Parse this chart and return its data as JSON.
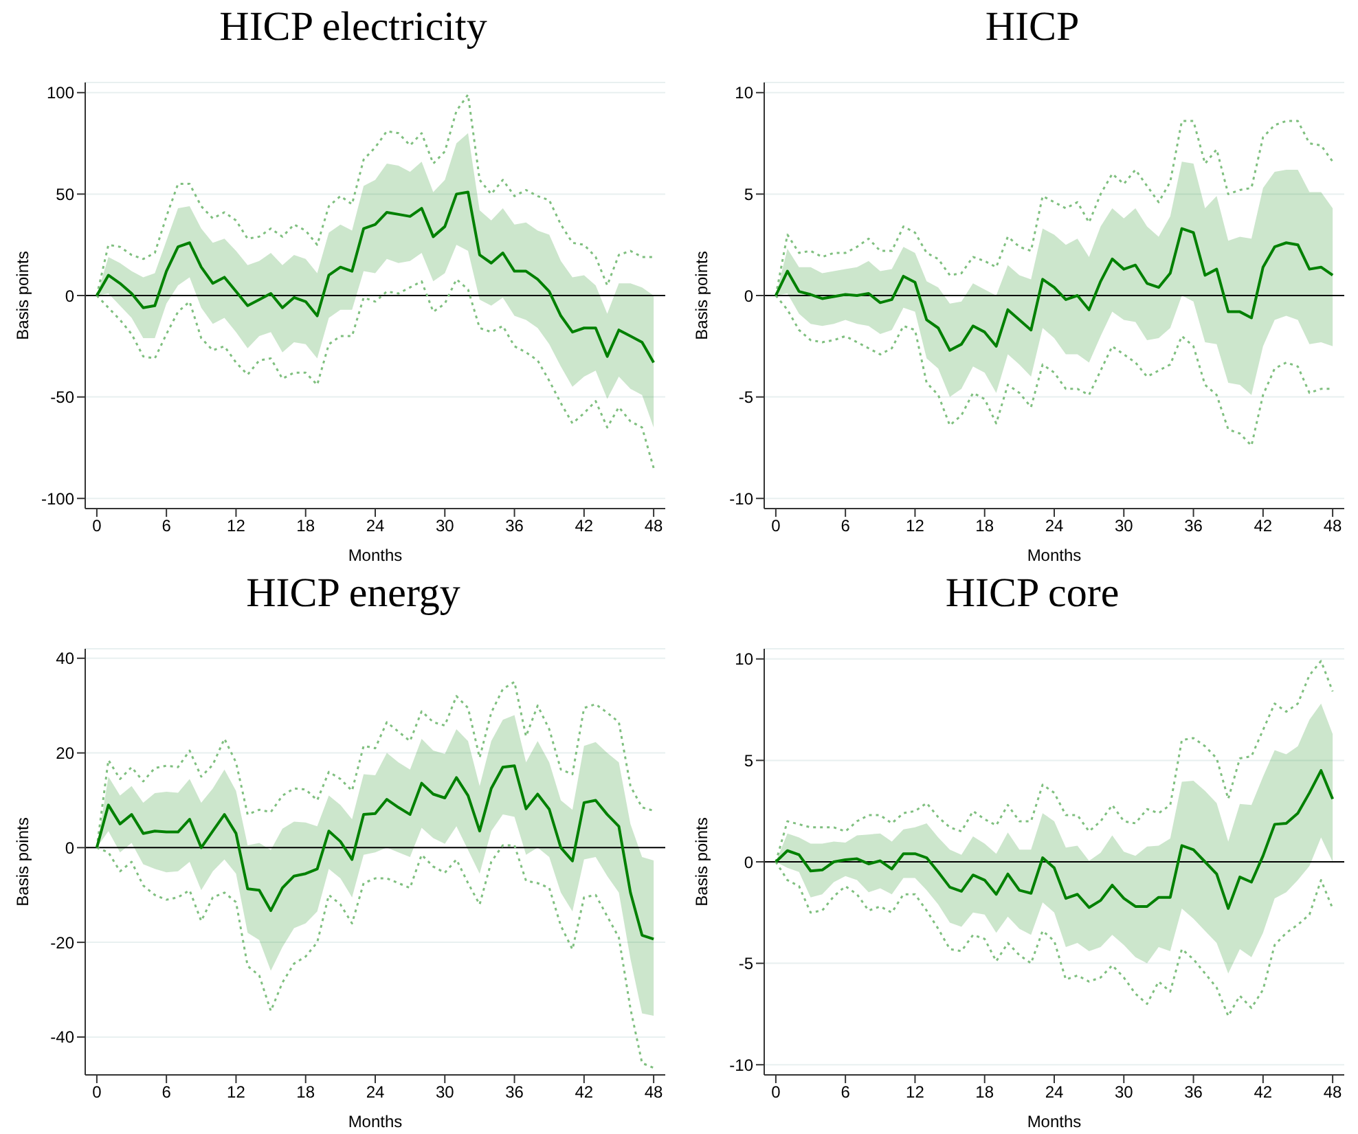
{
  "chart_data": [
    {
      "type": "line",
      "title": "HICP electricity",
      "xlabel": "Months",
      "ylabel": "Basis points",
      "x": [
        0,
        1,
        2,
        3,
        4,
        5,
        6,
        7,
        8,
        9,
        10,
        11,
        12,
        13,
        14,
        15,
        16,
        17,
        18,
        19,
        20,
        21,
        22,
        23,
        24,
        25,
        26,
        27,
        28,
        29,
        30,
        31,
        32,
        33,
        34,
        35,
        36,
        37,
        38,
        39,
        40,
        41,
        42,
        43,
        44,
        45,
        46,
        47,
        48
      ],
      "xlim": [
        -1,
        49
      ],
      "xticks": [
        0,
        6,
        12,
        18,
        24,
        30,
        36,
        42,
        48
      ],
      "ylim": [
        -105,
        105
      ],
      "yticks": [
        -100,
        -50,
        0,
        50,
        100
      ],
      "grid": "y",
      "ref_lines": [
        {
          "axis": "y",
          "value": 0,
          "color": "#000000"
        }
      ],
      "series": [
        {
          "color": "#7fbf7f",
          "line_style": "dotted",
          "values": [
            0,
            25,
            24,
            20,
            18,
            21,
            39,
            55,
            55,
            44,
            38,
            41,
            37,
            28,
            29,
            33,
            29,
            35,
            32,
            25,
            44,
            49,
            45,
            67,
            73,
            81,
            80,
            74,
            80,
            65,
            71,
            91,
            99,
            57,
            50,
            57,
            49,
            52,
            49,
            47,
            35,
            26,
            25,
            19,
            5,
            20,
            22,
            19,
            19
          ]
        },
        {
          "color": "#7fbf7f",
          "line_style": "dotted",
          "values": [
            0,
            -6,
            -12,
            -19,
            -30,
            -31,
            -19,
            -8,
            -3,
            -21,
            -27,
            -25,
            -33,
            -39,
            -32,
            -31,
            -41,
            -38,
            -38,
            -44,
            -24,
            -20,
            -20,
            -1,
            -3,
            2,
            1,
            4,
            7,
            -8,
            -4,
            8,
            3,
            -16,
            -18,
            -15,
            -25,
            -28,
            -32,
            -42,
            -53,
            -63,
            -58,
            -52,
            -65,
            -55,
            -62,
            -65,
            -85
          ]
        },
        {
          "color": "#008000",
          "line_style": "solid",
          "values": [
            0,
            10,
            6,
            1,
            -6,
            -5,
            12,
            24,
            26,
            14,
            6,
            9,
            2,
            -5,
            -2,
            1,
            -6,
            -1,
            -3,
            -10,
            10,
            14,
            12,
            33,
            35,
            41,
            40,
            39,
            43,
            29,
            34,
            50,
            51,
            20,
            16,
            21,
            12,
            12,
            8,
            2,
            -10,
            -18,
            -16,
            -16,
            -30,
            -17,
            -20,
            -23,
            -33
          ],
          "lower": [
            0,
            1,
            -5,
            -11,
            -21,
            -21,
            -4,
            5,
            9,
            -6,
            -14,
            -11,
            -18,
            -26,
            -20,
            -18,
            -28,
            -23,
            -24,
            -31,
            -11,
            -7,
            -7,
            12,
            11,
            18,
            16,
            17,
            21,
            7,
            11,
            25,
            22,
            -2,
            -5,
            -1,
            -10,
            -12,
            -16,
            -24,
            -35,
            -45,
            -40,
            -37,
            -51,
            -40,
            -46,
            -49,
            -65
          ],
          "upper": [
            0,
            19,
            16,
            12,
            9,
            11,
            27,
            43,
            44,
            33,
            26,
            28,
            22,
            15,
            17,
            21,
            15,
            20,
            18,
            11,
            31,
            35,
            32,
            54,
            57,
            65,
            64,
            61,
            66,
            51,
            57,
            75,
            80,
            42,
            37,
            43,
            35,
            36,
            32,
            30,
            17,
            9,
            10,
            5,
            -9,
            6,
            6,
            4,
            0
          ]
        }
      ]
    },
    {
      "type": "line",
      "title": "HICP",
      "xlabel": "Months",
      "ylabel": "Basis points",
      "x": [
        0,
        1,
        2,
        3,
        4,
        5,
        6,
        7,
        8,
        9,
        10,
        11,
        12,
        13,
        14,
        15,
        16,
        17,
        18,
        19,
        20,
        21,
        22,
        23,
        24,
        25,
        26,
        27,
        28,
        29,
        30,
        31,
        32,
        33,
        34,
        35,
        36,
        37,
        38,
        39,
        40,
        41,
        42,
        43,
        44,
        45,
        46,
        47,
        48
      ],
      "xlim": [
        -1,
        49
      ],
      "xticks": [
        0,
        6,
        12,
        18,
        24,
        30,
        36,
        42,
        48
      ],
      "ylim": [
        -10.5,
        10.5
      ],
      "yticks": [
        -10,
        -5,
        0,
        5,
        10
      ],
      "grid": "y",
      "ref_lines": [
        {
          "axis": "y",
          "value": 0,
          "color": "#000000"
        }
      ],
      "series": [
        {
          "color": "#7fbf7f",
          "line_style": "dotted",
          "values": [
            0,
            3.0,
            2.1,
            2.2,
            1.9,
            2.1,
            2.1,
            2.4,
            2.8,
            2.2,
            2.2,
            3.4,
            3.1,
            2.1,
            1.8,
            1.0,
            1.1,
            1.9,
            1.7,
            1.4,
            2.9,
            2.4,
            2.2,
            4.9,
            4.6,
            4.3,
            4.6,
            3.6,
            5.0,
            6.0,
            5.5,
            6.2,
            5.4,
            4.6,
            5.6,
            8.6,
            8.6,
            6.5,
            7.2,
            5.0,
            5.2,
            5.3,
            7.8,
            8.4,
            8.6,
            8.6,
            7.5,
            7.4,
            6.6
          ]
        },
        {
          "color": "#7fbf7f",
          "line_style": "dotted",
          "values": [
            0,
            -0.7,
            -1.7,
            -2.2,
            -2.3,
            -2.2,
            -2.0,
            -2.3,
            -2.6,
            -2.9,
            -2.6,
            -1.5,
            -1.7,
            -4.3,
            -4.9,
            -6.4,
            -5.9,
            -4.8,
            -5.1,
            -6.3,
            -4.4,
            -4.8,
            -5.5,
            -3.4,
            -3.8,
            -4.6,
            -4.6,
            -4.9,
            -3.7,
            -2.5,
            -2.9,
            -3.3,
            -4.0,
            -3.7,
            -3.4,
            -2.0,
            -2.5,
            -4.4,
            -4.9,
            -6.6,
            -6.8,
            -7.4,
            -4.9,
            -3.6,
            -3.3,
            -3.5,
            -4.8,
            -4.6,
            -4.6
          ]
        },
        {
          "color": "#008000",
          "line_style": "solid",
          "values": [
            0,
            1.2,
            0.2,
            0.05,
            -0.15,
            -0.05,
            0.05,
            0,
            0.1,
            -0.35,
            -0.2,
            0.95,
            0.65,
            -1.2,
            -1.6,
            -2.7,
            -2.4,
            -1.5,
            -1.8,
            -2.5,
            -0.7,
            -1.2,
            -1.7,
            0.8,
            0.4,
            -0.2,
            0,
            -0.7,
            0.7,
            1.8,
            1.3,
            1.5,
            0.6,
            0.4,
            1.1,
            3.3,
            3.1,
            1.0,
            1.3,
            -0.8,
            -0.8,
            -1.1,
            1.4,
            2.4,
            2.6,
            2.5,
            1.3,
            1.4,
            1.0
          ],
          "lower": [
            0,
            0.1,
            -0.9,
            -1.4,
            -1.5,
            -1.4,
            -1.2,
            -1.4,
            -1.5,
            -1.9,
            -1.7,
            -0.6,
            -0.8,
            -3.1,
            -3.6,
            -5.0,
            -4.6,
            -3.5,
            -3.8,
            -4.8,
            -2.9,
            -3.4,
            -4.0,
            -1.6,
            -2.1,
            -2.9,
            -2.9,
            -3.3,
            -2.0,
            -0.8,
            -1.2,
            -1.3,
            -2.2,
            -2.1,
            -1.6,
            0.0,
            -0.3,
            -2.3,
            -2.4,
            -4.3,
            -4.4,
            -4.9,
            -2.5,
            -1.2,
            -1.0,
            -1.2,
            -2.4,
            -2.3,
            -2.5
          ],
          "upper": [
            0,
            2.3,
            1.4,
            1.4,
            1.1,
            1.2,
            1.3,
            1.4,
            1.7,
            1.2,
            1.3,
            2.4,
            2.1,
            0.7,
            0.4,
            -0.4,
            -0.3,
            0.6,
            0.3,
            0,
            1.5,
            1.0,
            0.8,
            3.3,
            3.0,
            2.5,
            2.8,
            1.9,
            3.4,
            4.3,
            3.8,
            4.3,
            3.4,
            2.9,
            3.9,
            6.6,
            6.5,
            4.3,
            4.9,
            2.7,
            2.9,
            2.8,
            5.3,
            6.1,
            6.2,
            6.2,
            5.1,
            5.1,
            4.3
          ]
        }
      ]
    },
    {
      "type": "line",
      "title": "HICP energy",
      "xlabel": "Months",
      "ylabel": "Basis points",
      "x": [
        0,
        1,
        2,
        3,
        4,
        5,
        6,
        7,
        8,
        9,
        10,
        11,
        12,
        13,
        14,
        15,
        16,
        17,
        18,
        19,
        20,
        21,
        22,
        23,
        24,
        25,
        26,
        27,
        28,
        29,
        30,
        31,
        32,
        33,
        34,
        35,
        36,
        37,
        38,
        39,
        40,
        41,
        42,
        43,
        44,
        45,
        46,
        47,
        48
      ],
      "xlim": [
        -1,
        49
      ],
      "xticks": [
        0,
        6,
        12,
        18,
        24,
        30,
        36,
        42,
        48
      ],
      "ylim": [
        -48,
        42
      ],
      "yticks": [
        -40,
        -20,
        0,
        20,
        40
      ],
      "grid": "y",
      "ref_lines": [
        {
          "axis": "y",
          "value": 0,
          "color": "#000000"
        }
      ],
      "series": [
        {
          "color": "#7fbf7f",
          "line_style": "dotted",
          "values": [
            0,
            18.5,
            14.5,
            17,
            14,
            16.8,
            17.3,
            17,
            20.5,
            15,
            17.5,
            23,
            18,
            7,
            8,
            7.5,
            11,
            12.5,
            12.3,
            10,
            16,
            14.5,
            12,
            21.5,
            21,
            26.5,
            24.5,
            22.5,
            28.8,
            26.5,
            25.8,
            32,
            29.5,
            19,
            28.5,
            33.5,
            35,
            23.5,
            30,
            25,
            16.5,
            15.5,
            29.5,
            30.3,
            28.5,
            26.5,
            13,
            8.5,
            7.8
          ]
        },
        {
          "color": "#7fbf7f",
          "line_style": "dotted",
          "values": [
            0,
            -1,
            -5,
            -3,
            -8,
            -10,
            -11,
            -10.5,
            -9,
            -15.5,
            -10.5,
            -9.5,
            -11.5,
            -25,
            -27,
            -34.5,
            -28.5,
            -24.5,
            -23,
            -20,
            -10,
            -12,
            -16,
            -7.5,
            -6.5,
            -6.5,
            -7.5,
            -8.5,
            -1.5,
            -4,
            -5.3,
            -2.5,
            -7.5,
            -12,
            -3,
            0.5,
            0.5,
            -7,
            -7.5,
            -8.5,
            -16.5,
            -21.5,
            -10.5,
            -10,
            -14.5,
            -19,
            -34,
            -45.5,
            -46.5
          ]
        },
        {
          "color": "#008000",
          "line_style": "solid",
          "values": [
            0,
            9,
            5,
            7,
            3,
            3.5,
            3.3,
            3.3,
            6,
            0,
            3.5,
            7,
            3,
            -8.7,
            -9,
            -13.3,
            -8.5,
            -6,
            -5.5,
            -4.5,
            3.5,
            1.3,
            -2.5,
            7,
            7.2,
            10.2,
            8.5,
            7,
            13.6,
            11.3,
            10.5,
            14.8,
            11,
            3.5,
            12.5,
            17,
            17.3,
            8.2,
            11.3,
            8.1,
            0,
            -2.8,
            9.5,
            10,
            7,
            4.5,
            -9.5,
            -18.5,
            -19.3
          ],
          "lower": [
            0,
            3.5,
            -1,
            1,
            -3.5,
            -4.5,
            -5.2,
            -5,
            -3,
            -9,
            -5,
            -2.5,
            -5.5,
            -18,
            -19.5,
            -26,
            -21,
            -17,
            -16,
            -13.5,
            -4.5,
            -6.5,
            -10.5,
            -1.5,
            -1,
            0,
            -1,
            -2,
            4.2,
            2,
            0.8,
            4.5,
            -0.5,
            -5.5,
            3.5,
            7,
            6.5,
            -1.5,
            0,
            -2,
            -9.5,
            -13.5,
            -2.5,
            -2,
            -6,
            -9.5,
            -23.5,
            -35,
            -35.5
          ],
          "upper": [
            0,
            15,
            11,
            13,
            9.5,
            11.5,
            11.8,
            11.6,
            14.5,
            9.5,
            12.5,
            16.5,
            12,
            0.5,
            1,
            -0.5,
            4,
            5.5,
            5.3,
            4.5,
            11,
            9,
            6,
            15.5,
            15.3,
            20,
            18,
            16.5,
            23,
            20.5,
            19.8,
            25,
            22.5,
            13,
            22.5,
            27,
            28,
            18,
            22.5,
            18,
            10,
            8,
            21.5,
            22.3,
            20,
            18,
            5,
            -2,
            -2.7
          ]
        }
      ]
    },
    {
      "type": "line",
      "title": "HICP core",
      "xlabel": "Months",
      "ylabel": "Basis points",
      "x": [
        0,
        1,
        2,
        3,
        4,
        5,
        6,
        7,
        8,
        9,
        10,
        11,
        12,
        13,
        14,
        15,
        16,
        17,
        18,
        19,
        20,
        21,
        22,
        23,
        24,
        25,
        26,
        27,
        28,
        29,
        30,
        31,
        32,
        33,
        34,
        35,
        36,
        37,
        38,
        39,
        40,
        41,
        42,
        43,
        44,
        45,
        46,
        47,
        48
      ],
      "xlim": [
        -1,
        49
      ],
      "xticks": [
        0,
        6,
        12,
        18,
        24,
        30,
        36,
        42,
        48
      ],
      "ylim": [
        -10.5,
        10.5
      ],
      "yticks": [
        -10,
        -5,
        0,
        5,
        10
      ],
      "grid": "y",
      "ref_lines": [
        {
          "axis": "y",
          "value": 0,
          "color": "#000000"
        }
      ],
      "series": [
        {
          "color": "#7fbf7f",
          "line_style": "dotted",
          "values": [
            0,
            2.0,
            1.85,
            1.7,
            1.7,
            1.7,
            1.5,
            2.0,
            2.3,
            2.3,
            1.9,
            2.4,
            2.5,
            2.9,
            2.2,
            1.7,
            1.5,
            2.5,
            2.1,
            1.8,
            2.8,
            2.0,
            2.0,
            3.8,
            3.4,
            2.3,
            2.3,
            1.5,
            2.0,
            2.8,
            2.0,
            1.9,
            2.6,
            2.4,
            2.8,
            6.0,
            6.1,
            5.7,
            5.1,
            3.1,
            5.1,
            5.2,
            6.5,
            7.8,
            7.4,
            7.8,
            9.2,
            9.9,
            8.4
          ]
        },
        {
          "color": "#7fbf7f",
          "line_style": "dotted",
          "values": [
            0,
            -0.9,
            -1.2,
            -2.5,
            -2.4,
            -1.7,
            -1.2,
            -1.6,
            -2.4,
            -2.2,
            -2.5,
            -1.6,
            -1.6,
            -2.4,
            -3.3,
            -4.3,
            -4.4,
            -3.6,
            -3.8,
            -4.9,
            -4.0,
            -4.6,
            -5.0,
            -3.4,
            -3.9,
            -5.8,
            -5.6,
            -5.9,
            -5.7,
            -5.1,
            -5.7,
            -6.5,
            -7.0,
            -5.9,
            -6.4,
            -4.3,
            -4.8,
            -5.5,
            -6.2,
            -7.6,
            -6.6,
            -7.2,
            -6.3,
            -4.1,
            -3.5,
            -3.1,
            -2.6,
            -0.9,
            -2.3
          ]
        },
        {
          "color": "#008000",
          "line_style": "solid",
          "values": [
            0,
            0.55,
            0.35,
            -0.45,
            -0.4,
            0,
            0.1,
            0.15,
            -0.1,
            0.05,
            -0.35,
            0.4,
            0.4,
            0.2,
            -0.5,
            -1.25,
            -1.45,
            -0.65,
            -0.9,
            -1.6,
            -0.6,
            -1.4,
            -1.55,
            0.2,
            -0.3,
            -1.8,
            -1.6,
            -2.25,
            -1.9,
            -1.15,
            -1.8,
            -2.2,
            -2.2,
            -1.75,
            -1.75,
            0.8,
            0.6,
            0,
            -0.6,
            -2.3,
            -0.75,
            -1.0,
            0.3,
            1.85,
            1.9,
            2.4,
            3.4,
            4.5,
            3.1
          ],
          "lower": [
            0,
            -0.3,
            -0.5,
            -1.75,
            -1.6,
            -1.0,
            -0.7,
            -0.9,
            -1.5,
            -1.3,
            -1.6,
            -0.8,
            -0.8,
            -1.4,
            -2.1,
            -3.0,
            -3.2,
            -2.5,
            -2.6,
            -3.5,
            -2.7,
            -3.3,
            -3.6,
            -2.0,
            -2.5,
            -4.2,
            -4.0,
            -4.4,
            -4.2,
            -3.6,
            -4.1,
            -4.7,
            -5.0,
            -4.2,
            -4.4,
            -2.3,
            -2.8,
            -3.4,
            -4.0,
            -5.5,
            -4.3,
            -4.7,
            -3.5,
            -1.8,
            -1.5,
            -0.9,
            -0.2,
            1.2,
            0
          ],
          "upper": [
            0,
            1.4,
            1.2,
            0.9,
            0.9,
            1.0,
            0.95,
            1.3,
            1.35,
            1.4,
            1.0,
            1.6,
            1.7,
            1.9,
            1.2,
            0.6,
            0.35,
            1.25,
            0.9,
            0.4,
            1.45,
            0.6,
            0.6,
            2.4,
            2.0,
            0.7,
            0.8,
            0.05,
            0.45,
            1.3,
            0.5,
            0.3,
            0.75,
            0.8,
            1.15,
            3.95,
            4.0,
            3.5,
            2.9,
            1.0,
            2.85,
            2.8,
            4.2,
            5.5,
            5.3,
            5.7,
            7.0,
            7.8,
            6.3
          ]
        }
      ]
    }
  ]
}
